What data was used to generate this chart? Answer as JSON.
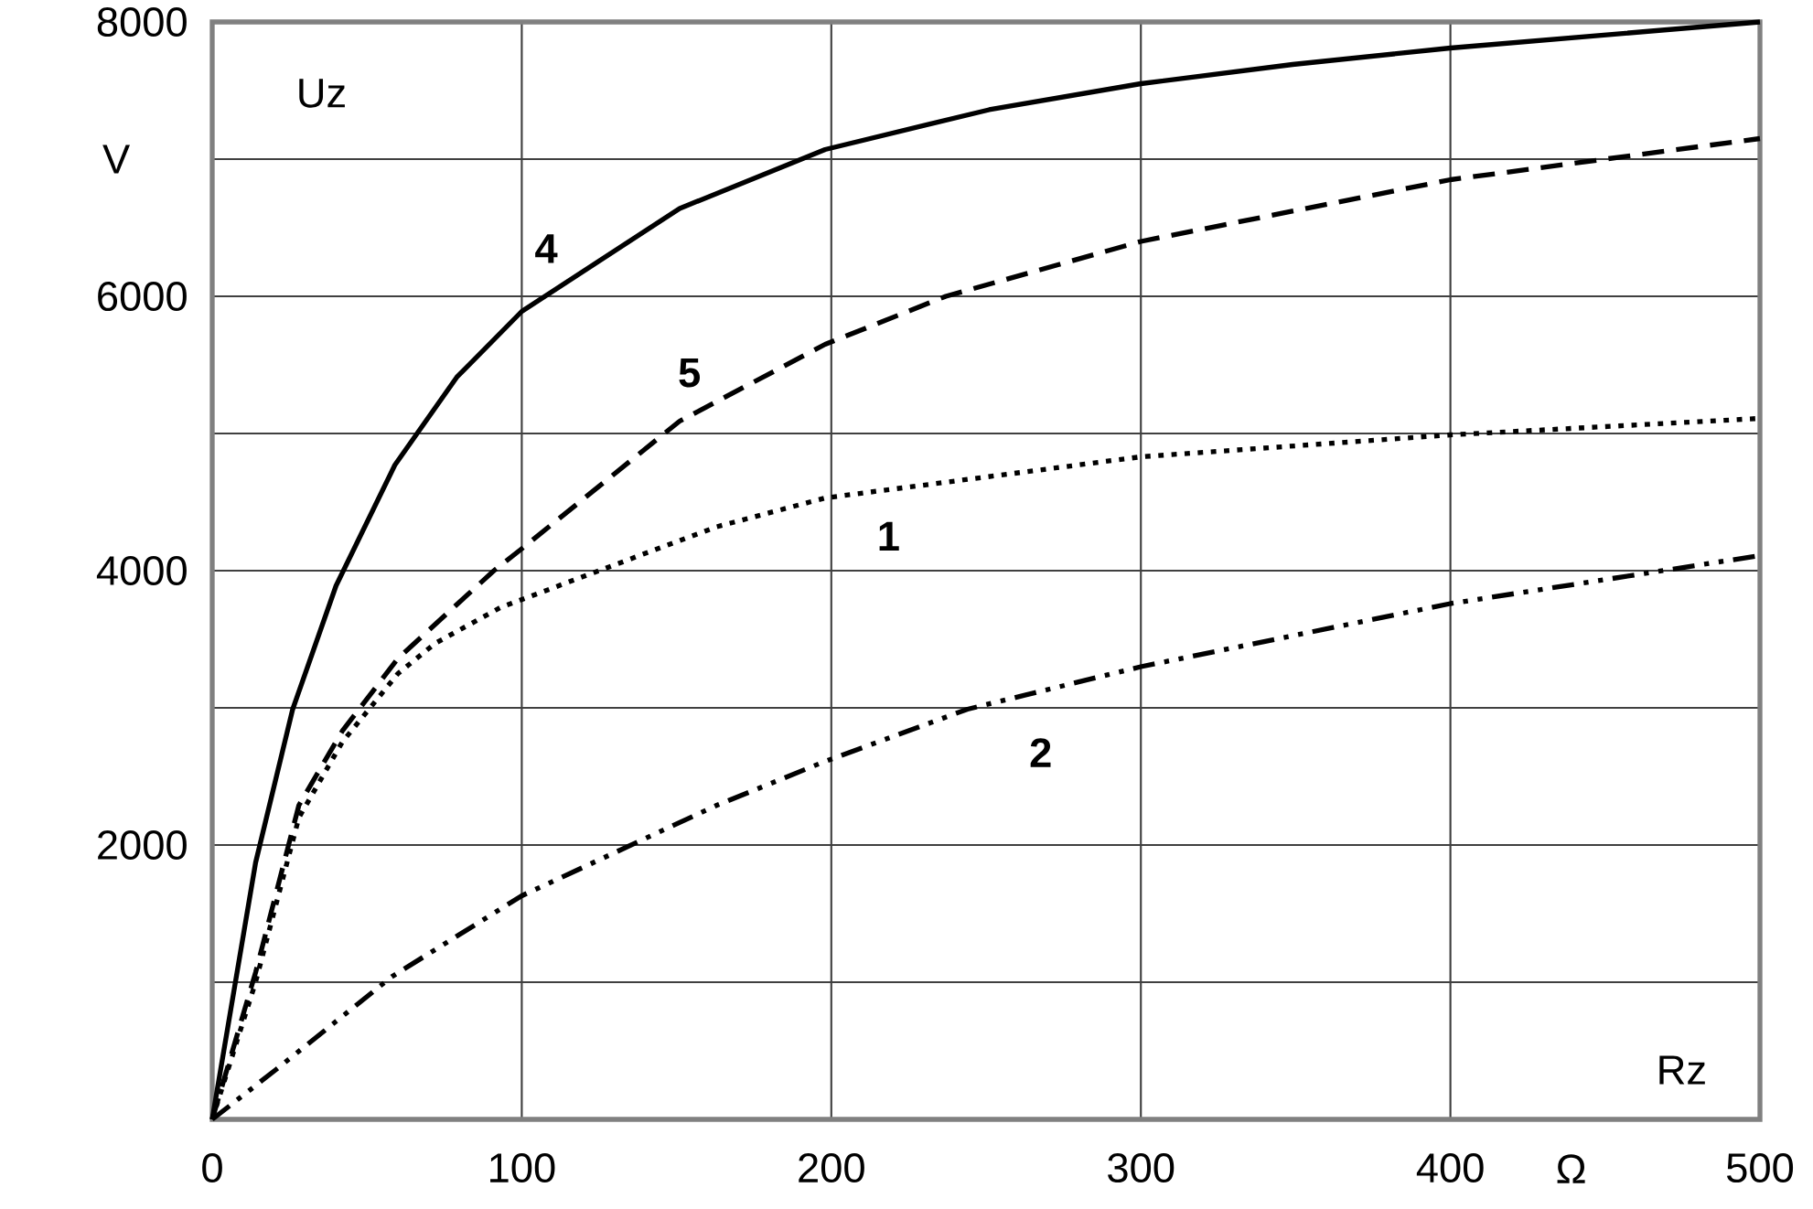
{
  "chart_data": {
    "type": "line",
    "xlabel": "Rz",
    "ylabel": "Uz",
    "xlim": [
      0,
      500
    ],
    "ylim": [
      0,
      8000
    ],
    "xticks": [
      0,
      100,
      200,
      300,
      400,
      500
    ],
    "yticks": [
      {
        "value": 0,
        "label": null
      },
      {
        "value": 1000,
        "label": null
      },
      2000,
      {
        "value": 3000,
        "label": null
      },
      4000,
      {
        "value": 5000,
        "label": null
      },
      6000,
      {
        "value": 7000,
        "label": null
      },
      8000
    ],
    "grid": true,
    "marker": "none",
    "series": [
      {
        "name": "4",
        "color": "#000000",
        "line_style": "solid",
        "x": [
          0,
          14,
          26,
          40,
          59,
          79,
          100,
          151,
          198,
          251,
          300,
          349,
          400,
          500
        ],
        "values": [
          0,
          1870,
          2990,
          3890,
          4770,
          5410,
          5890,
          6640,
          7070,
          7360,
          7550,
          7690,
          7810,
          8000
        ]
      },
      {
        "name": "5",
        "color": "#000000",
        "line_style": "dashed",
        "x": [
          0,
          14,
          28,
          42,
          60,
          91,
          100,
          151,
          198,
          237,
          300,
          400,
          500
        ],
        "values": [
          0,
          1070,
          2290,
          2830,
          3360,
          4000,
          4160,
          5090,
          5650,
          6000,
          6400,
          6850,
          7150
        ]
      },
      {
        "name": "1",
        "color": "#000000",
        "line_style": "dotted",
        "x": [
          0,
          14,
          28,
          42,
          60,
          72,
          93,
          119,
          163,
          198,
          300,
          400,
          500
        ],
        "values": [
          0,
          1000,
          2200,
          2750,
          3250,
          3470,
          3730,
          3950,
          4320,
          4530,
          4830,
          4990,
          5110
        ]
      },
      {
        "name": "2",
        "color": "#000000",
        "line_style": "dashdotdotted",
        "x": [
          0,
          21,
          58,
          100,
          163,
          198,
          244,
          300,
          400,
          500
        ],
        "values": [
          0,
          370,
          1040,
          1630,
          2290,
          2610,
          2990,
          3300,
          3760,
          4110
        ]
      }
    ],
    "annotations": [
      "V",
      "Ω"
    ]
  }
}
